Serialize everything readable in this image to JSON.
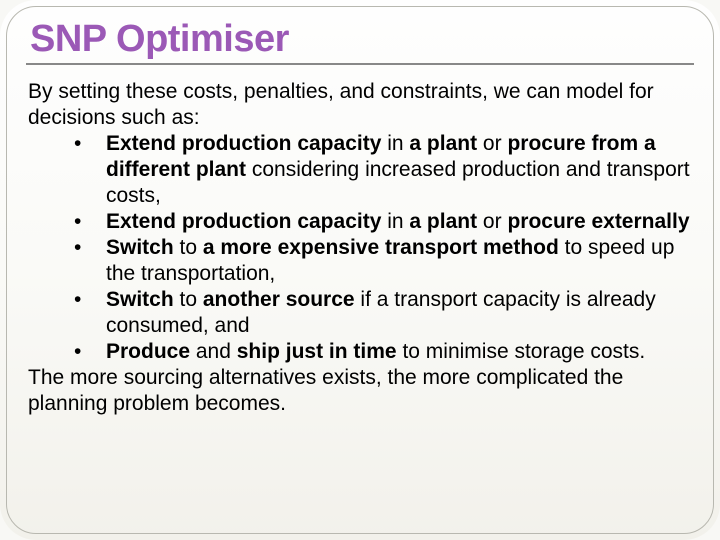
{
  "slide": {
    "title": "SNP Optimiser",
    "title_color": "#9b59b6",
    "title_fontsize": 38,
    "underline_color": "#888888",
    "body_fontsize": 21,
    "text_color": "#000000",
    "background_gradient": [
      "#fefefe",
      "#fafaf7",
      "#f2f1eb"
    ],
    "border_color": "#b8b8b0",
    "border_radius": 36,
    "intro": "By setting these costs, penalties, and constraints, we can model for decisions such as:",
    "bullets": [
      {
        "runs": [
          {
            "t": "Extend production capacity",
            "b": true
          },
          {
            "t": " in ",
            "b": false
          },
          {
            "t": "a plant",
            "b": true
          },
          {
            "t": " or ",
            "b": false
          },
          {
            "t": "procure from a different plant",
            "b": true
          },
          {
            "t": " considering increased production and transport costs,",
            "b": false
          }
        ]
      },
      {
        "runs": [
          {
            "t": "Extend production capacity",
            "b": true
          },
          {
            "t": " in ",
            "b": false
          },
          {
            "t": "a plant",
            "b": true
          },
          {
            "t": " or ",
            "b": false
          },
          {
            "t": "procure externally",
            "b": true
          }
        ]
      },
      {
        "runs": [
          {
            "t": "Switch",
            "b": true
          },
          {
            "t": " to ",
            "b": false
          },
          {
            "t": "a more expensive transport method",
            "b": true
          },
          {
            "t": " to speed up the transportation,",
            "b": false
          }
        ]
      },
      {
        "runs": [
          {
            "t": "Switch",
            "b": true
          },
          {
            "t": " to ",
            "b": false
          },
          {
            "t": "another source",
            "b": true
          },
          {
            "t": " if a transport capacity is already consumed, and",
            "b": false
          }
        ]
      },
      {
        "runs": [
          {
            "t": "Produce",
            "b": true
          },
          {
            "t": " and ",
            "b": false
          },
          {
            "t": "ship just in time",
            "b": true
          },
          {
            "t": " to minimise storage costs.",
            "b": false
          }
        ]
      }
    ],
    "outro": "The more sourcing alternatives exists, the more complicated the planning problem becomes."
  }
}
